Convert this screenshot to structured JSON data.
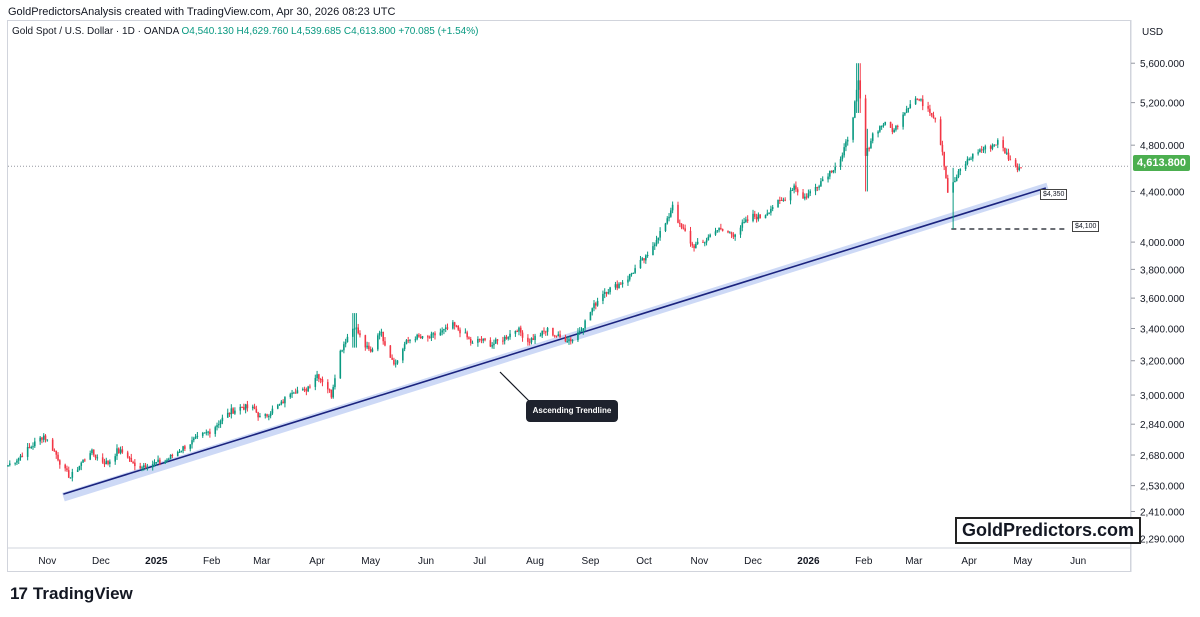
{
  "header": {
    "caption": "GoldPredictorsAnalysis created with TradingView.com, Apr 30, 2026 08:23 UTC"
  },
  "legend": {
    "symbol": "Gold Spot / U.S. Dollar · 1D · OANDA",
    "open": "O4,540.130",
    "high": "H4,629.760",
    "low": "L4,539.685",
    "close": "C4,613.800",
    "change": "+70.085 (+1.54%)"
  },
  "currency": "USD",
  "last_price_label": "4,613.800",
  "annotations": {
    "trendline_label": "Ascending Trendline",
    "level_4350": "$4,350",
    "level_4100": "$4,100"
  },
  "watermark": "GoldPredictors.com",
  "footer": {
    "brand": "TradingView",
    "mark": "17"
  },
  "colors": {
    "up": "#089981",
    "down": "#f23645",
    "trendline": "#1a237e",
    "trend_band": "#c5d3f5",
    "price_tag": "#4caf50"
  },
  "chart_data": {
    "type": "candlestick",
    "y_scale": "log",
    "ylim": [
      2250,
      5850
    ],
    "y_ticks": [
      2290,
      2410,
      2530,
      2680,
      2840,
      3000,
      3200,
      3400,
      3600,
      3800,
      4000,
      4400,
      4800,
      5200,
      5600
    ],
    "y_tick_labels": [
      "2,290.000",
      "2,410.000",
      "2,530.000",
      "2,680.000",
      "2,840.000",
      "3,000.000",
      "3,200.000",
      "3,400.000",
      "3,600.000",
      "3,800.000",
      "4,000.000",
      "4,400.000",
      "4,800.000",
      "5,200.000",
      "5,600.000"
    ],
    "x_range": [
      "2024-10-10",
      "2026-06-30"
    ],
    "x_ticks": [
      {
        "date": "2024-11-01",
        "label": "Nov",
        "bold": false
      },
      {
        "date": "2024-12-01",
        "label": "Dec",
        "bold": false
      },
      {
        "date": "2025-01-01",
        "label": "2025",
        "bold": true
      },
      {
        "date": "2025-02-01",
        "label": "Feb",
        "bold": false
      },
      {
        "date": "2025-03-01",
        "label": "Mar",
        "bold": false
      },
      {
        "date": "2025-04-01",
        "label": "Apr",
        "bold": false
      },
      {
        "date": "2025-05-01",
        "label": "May",
        "bold": false
      },
      {
        "date": "2025-06-01",
        "label": "Jun",
        "bold": false
      },
      {
        "date": "2025-07-01",
        "label": "Jul",
        "bold": false
      },
      {
        "date": "2025-08-01",
        "label": "Aug",
        "bold": false
      },
      {
        "date": "2025-09-01",
        "label": "Sep",
        "bold": false
      },
      {
        "date": "2025-10-01",
        "label": "Oct",
        "bold": false
      },
      {
        "date": "2025-11-01",
        "label": "Nov",
        "bold": false
      },
      {
        "date": "2025-12-01",
        "label": "Dec",
        "bold": false
      },
      {
        "date": "2026-01-01",
        "label": "2026",
        "bold": true
      },
      {
        "date": "2026-02-01",
        "label": "Feb",
        "bold": false
      },
      {
        "date": "2026-03-01",
        "label": "Mar",
        "bold": false
      },
      {
        "date": "2026-04-01",
        "label": "Apr",
        "bold": false
      },
      {
        "date": "2026-05-01",
        "label": "May",
        "bold": false
      },
      {
        "date": "2026-06-01",
        "label": "Jun",
        "bold": false
      }
    ],
    "last_price": 4613.8,
    "trendline": {
      "start": [
        "2024-11-10",
        2490
      ],
      "end": [
        "2026-05-15",
        4445
      ]
    },
    "support_level": {
      "value": 4100,
      "from": "2026-03-22",
      "to": "2026-05-25"
    },
    "closes": [
      [
        "2024-10-10",
        2630
      ],
      [
        "2024-10-15",
        2660
      ],
      [
        "2024-10-20",
        2700
      ],
      [
        "2024-10-25",
        2740
      ],
      [
        "2024-10-30",
        2780
      ],
      [
        "2024-11-05",
        2700
      ],
      [
        "2024-11-10",
        2610
      ],
      [
        "2024-11-14",
        2570
      ],
      [
        "2024-11-20",
        2640
      ],
      [
        "2024-11-25",
        2700
      ],
      [
        "2024-12-01",
        2650
      ],
      [
        "2024-12-05",
        2640
      ],
      [
        "2024-12-10",
        2700
      ],
      [
        "2024-12-15",
        2690
      ],
      [
        "2024-12-20",
        2620
      ],
      [
        "2024-12-25",
        2630
      ],
      [
        "2025-01-01",
        2640
      ],
      [
        "2025-01-06",
        2650
      ],
      [
        "2025-01-12",
        2690
      ],
      [
        "2025-01-18",
        2730
      ],
      [
        "2025-01-25",
        2770
      ],
      [
        "2025-02-01",
        2810
      ],
      [
        "2025-02-06",
        2860
      ],
      [
        "2025-02-12",
        2910
      ],
      [
        "2025-02-18",
        2935
      ],
      [
        "2025-02-25",
        2920
      ],
      [
        "2025-03-01",
        2860
      ],
      [
        "2025-03-06",
        2910
      ],
      [
        "2025-03-12",
        2950
      ],
      [
        "2025-03-18",
        3030
      ],
      [
        "2025-03-25",
        3020
      ],
      [
        "2025-04-01",
        3120
      ],
      [
        "2025-04-06",
        3060
      ],
      [
        "2025-04-09",
        3000
      ],
      [
        "2025-04-13",
        3230
      ],
      [
        "2025-04-17",
        3330
      ],
      [
        "2025-04-22",
        3420
      ],
      [
        "2025-04-27",
        3300
      ],
      [
        "2025-05-01",
        3250
      ],
      [
        "2025-05-06",
        3390
      ],
      [
        "2025-05-12",
        3230
      ],
      [
        "2025-05-15",
        3180
      ],
      [
        "2025-05-20",
        3300
      ],
      [
        "2025-05-25",
        3350
      ],
      [
        "2025-06-01",
        3330
      ],
      [
        "2025-06-06",
        3360
      ],
      [
        "2025-06-12",
        3390
      ],
      [
        "2025-06-16",
        3420
      ],
      [
        "2025-06-22",
        3370
      ],
      [
        "2025-06-27",
        3300
      ],
      [
        "2025-07-01",
        3330
      ],
      [
        "2025-07-08",
        3300
      ],
      [
        "2025-07-15",
        3340
      ],
      [
        "2025-07-22",
        3400
      ],
      [
        "2025-07-28",
        3320
      ],
      [
        "2025-08-02",
        3350
      ],
      [
        "2025-08-08",
        3390
      ],
      [
        "2025-08-15",
        3340
      ],
      [
        "2025-08-22",
        3330
      ],
      [
        "2025-08-28",
        3420
      ],
      [
        "2025-09-02",
        3530
      ],
      [
        "2025-09-08",
        3640
      ],
      [
        "2025-09-15",
        3680
      ],
      [
        "2025-09-22",
        3740
      ],
      [
        "2025-09-29",
        3850
      ],
      [
        "2025-10-03",
        3890
      ],
      [
        "2025-10-08",
        4030
      ],
      [
        "2025-10-14",
        4160
      ],
      [
        "2025-10-17",
        4300
      ],
      [
        "2025-10-21",
        4120
      ],
      [
        "2025-10-25",
        4060
      ],
      [
        "2025-10-28",
        3970
      ],
      [
        "2025-11-03",
        3990
      ],
      [
        "2025-11-10",
        4100
      ],
      [
        "2025-11-15",
        4080
      ],
      [
        "2025-11-20",
        4060
      ],
      [
        "2025-11-25",
        4130
      ],
      [
        "2025-12-01",
        4200
      ],
      [
        "2025-12-06",
        4190
      ],
      [
        "2025-12-12",
        4280
      ],
      [
        "2025-12-18",
        4330
      ],
      [
        "2025-12-24",
        4450
      ],
      [
        "2025-12-29",
        4340
      ],
      [
        "2026-01-04",
        4420
      ],
      [
        "2026-01-10",
        4520
      ],
      [
        "2026-01-15",
        4600
      ],
      [
        "2026-01-20",
        4700
      ],
      [
        "2026-01-25",
        4980
      ],
      [
        "2026-01-29",
        5400
      ],
      [
        "2026-02-02",
        4700
      ],
      [
        "2026-02-06",
        4900
      ],
      [
        "2026-02-12",
        5000
      ],
      [
        "2026-02-18",
        4930
      ],
      [
        "2026-02-23",
        5100
      ],
      [
        "2026-03-01",
        5250
      ],
      [
        "2026-03-04",
        5220
      ],
      [
        "2026-03-09",
        5150
      ],
      [
        "2026-03-13",
        5050
      ],
      [
        "2026-03-17",
        4750
      ],
      [
        "2026-03-20",
        4400
      ],
      [
        "2026-03-23",
        4460
      ],
      [
        "2026-03-27",
        4580
      ],
      [
        "2026-04-01",
        4680
      ],
      [
        "2026-04-06",
        4750
      ],
      [
        "2026-04-12",
        4780
      ],
      [
        "2026-04-17",
        4830
      ],
      [
        "2026-04-22",
        4720
      ],
      [
        "2026-04-27",
        4600
      ],
      [
        "2026-04-30",
        4613.8
      ]
    ],
    "wick_spikes": [
      {
        "date": "2026-01-29",
        "high": 5600,
        "low": 5100
      },
      {
        "date": "2026-02-02",
        "high": 4950,
        "low": 4400
      },
      {
        "date": "2026-03-22",
        "high": 4600,
        "low": 4100
      },
      {
        "date": "2025-04-22",
        "high": 3500,
        "low": 3280
      }
    ]
  }
}
